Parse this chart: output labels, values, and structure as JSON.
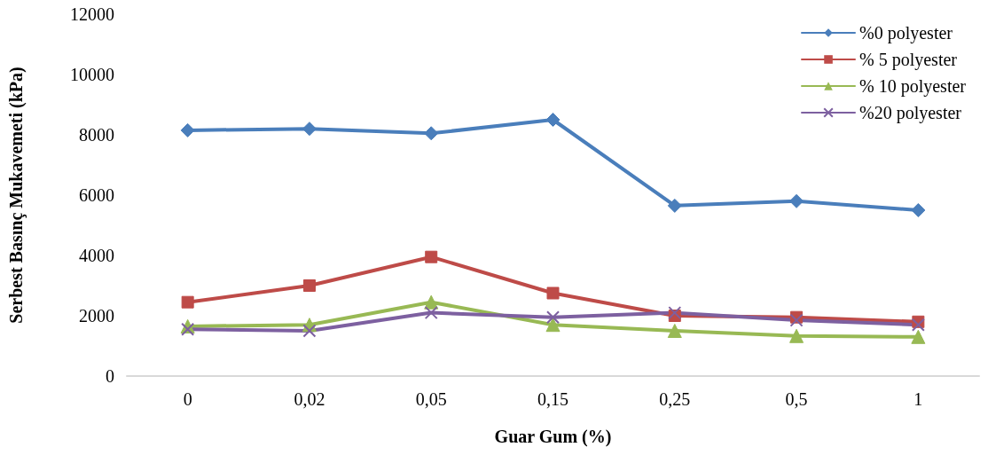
{
  "chart_data": {
    "type": "line",
    "xlabel": "Guar Gum (%)",
    "ylabel": "Serbest Basınç Mukavemeti (kPa)",
    "categories": [
      "0",
      "0,02",
      "0,05",
      "0,15",
      "0,25",
      "0,5",
      "1"
    ],
    "ylim": [
      0,
      12000
    ],
    "yticks": [
      0,
      2000,
      4000,
      6000,
      8000,
      10000,
      12000
    ],
    "grid": false,
    "legend": "top right",
    "line_style": "solid",
    "series": [
      {
        "name": "%0 polyester",
        "color": "#4a7ebb",
        "marker": "diamond",
        "values": [
          8150,
          8200,
          8050,
          8500,
          5650,
          5800,
          5500
        ]
      },
      {
        "name": "% 5 polyester",
        "color": "#be4b48",
        "marker": "square",
        "values": [
          2450,
          3000,
          3950,
          2750,
          2000,
          1950,
          1800
        ]
      },
      {
        "name": "% 10 polyester",
        "color": "#98b954",
        "marker": "triangle",
        "values": [
          1650,
          1700,
          2450,
          1700,
          1500,
          1330,
          1300
        ]
      },
      {
        "name": "%20 polyester",
        "color": "#7d60a0",
        "marker": "cross",
        "values": [
          1550,
          1500,
          2100,
          1950,
          2100,
          1850,
          1700
        ]
      }
    ]
  }
}
